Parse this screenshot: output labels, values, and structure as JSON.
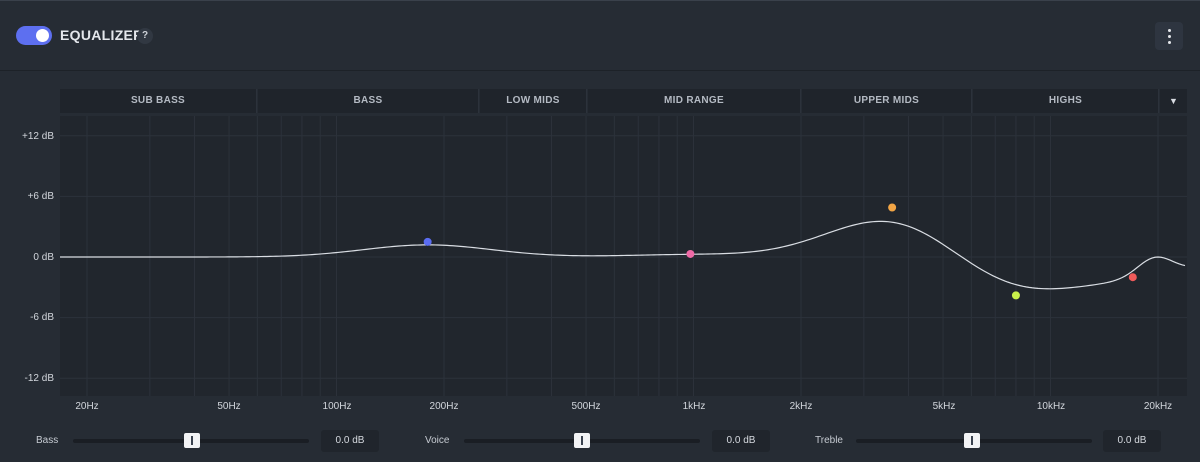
{
  "header": {
    "title": "EQUALIZER",
    "help": "?",
    "enabled": true,
    "accent_color": "#5d6ff0"
  },
  "bands": [
    "SUB BASS",
    "BASS",
    "LOW MIDS",
    "MID RANGE",
    "UPPER MIDS",
    "HIGHS"
  ],
  "db_labels": [
    "+12 dB",
    "+6 dB",
    "0 dB",
    "-6 dB",
    "-12 dB"
  ],
  "freq_labels": [
    "20Hz",
    "50Hz",
    "100Hz",
    "200Hz",
    "500Hz",
    "1kHz",
    "2kHz",
    "5kHz",
    "10kHz",
    "20kHz"
  ],
  "eq_points": [
    {
      "freq_hz": 180,
      "gain_db": 1.5,
      "color": "#5b6df2"
    },
    {
      "freq_hz": 980,
      "gain_db": 0.3,
      "color": "#ef6aa6"
    },
    {
      "freq_hz": 3600,
      "gain_db": 4.9,
      "color": "#f2a545"
    },
    {
      "freq_hz": 8000,
      "gain_db": -3.8,
      "color": "#c8f04a"
    },
    {
      "freq_hz": 17000,
      "gain_db": -2.0,
      "color": "#ef5a5a"
    }
  ],
  "sliders": [
    {
      "label": "Bass",
      "value": "0.0 dB",
      "position": 0.5
    },
    {
      "label": "Voice",
      "value": "0.0 dB",
      "position": 0.5
    },
    {
      "label": "Treble",
      "value": "0.0 dB",
      "position": 0.5
    }
  ]
}
